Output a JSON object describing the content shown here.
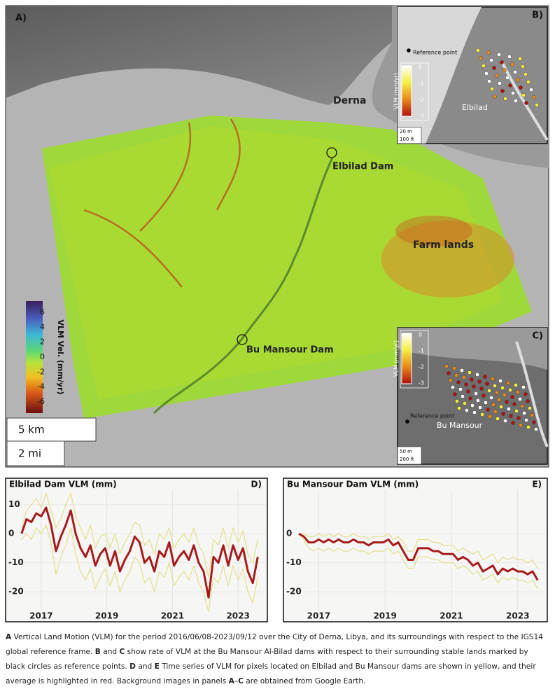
{
  "map": {
    "panel_label": "A)",
    "places": [
      "Derna",
      "Elbilad Dam",
      "Farm lands",
      "Bu Mansour Dam"
    ],
    "colorbar": {
      "title": "VLM Vel. (mm/yr)",
      "ticks": [
        6,
        4,
        2,
        0,
        -2,
        -4,
        -6
      ]
    },
    "scale": [
      "5 km",
      "2 mi"
    ]
  },
  "insets": [
    {
      "label": "B)",
      "reference": "Reference point",
      "site": "Elbilad",
      "colorbar_title": "VLM (mm/yr)",
      "ticks": [
        0,
        -1,
        -2,
        -3
      ],
      "scale": [
        "20 m",
        "100 ft"
      ]
    },
    {
      "label": "C)",
      "reference": "Reference point",
      "site": "Bu Mansour",
      "colorbar_title": "VLM (mm/yr)",
      "ticks": [
        0,
        -1,
        -2,
        -3
      ],
      "scale": [
        "50 m",
        "200 ft"
      ]
    }
  ],
  "chart_data": [
    {
      "type": "line",
      "title": "Elbilad Dam VLM (mm)",
      "label": "D)",
      "x": [
        2016.4,
        2016.55,
        2016.7,
        2016.85,
        2017,
        2017.15,
        2017.3,
        2017.45,
        2017.6,
        2017.75,
        2017.9,
        2018.05,
        2018.2,
        2018.35,
        2018.5,
        2018.65,
        2018.8,
        2018.95,
        2019.1,
        2019.25,
        2019.4,
        2019.55,
        2019.7,
        2019.85,
        2020,
        2020.15,
        2020.3,
        2020.45,
        2020.6,
        2020.75,
        2020.9,
        2021.05,
        2021.2,
        2021.35,
        2021.5,
        2021.65,
        2021.8,
        2021.95,
        2022.1,
        2022.25,
        2022.4,
        2022.55,
        2022.7,
        2022.85,
        2023,
        2023.15,
        2023.3,
        2023.45,
        2023.6
      ],
      "series": [
        {
          "color": "#e3df8c",
          "values": [
            2,
            8,
            10,
            12,
            9,
            14,
            8,
            2,
            5,
            10,
            14,
            6,
            2,
            -2,
            3,
            -5,
            -1,
            0,
            -5,
            0,
            -7,
            -3,
            0,
            4,
            3,
            -4,
            -2,
            -7,
            0,
            -2,
            2,
            -5,
            -2,
            0,
            -3,
            2,
            -4,
            -7,
            -15,
            -2,
            -4,
            2,
            -5,
            2,
            -3,
            1,
            -7,
            -10,
            -2
          ]
        },
        {
          "color": "#e3df8c",
          "values": [
            -2,
            0,
            -2,
            2,
            0,
            3,
            -3,
            -14,
            -8,
            -4,
            2,
            -7,
            -13,
            -16,
            -12,
            -19,
            -15,
            -12,
            -18,
            -13,
            -20,
            -16,
            -13,
            -8,
            -10,
            -17,
            -15,
            -20,
            -13,
            -15,
            -10,
            -18,
            -15,
            -13,
            -16,
            -11,
            -17,
            -20,
            -27,
            -15,
            -17,
            -11,
            -18,
            -11,
            -16,
            -12,
            -20,
            -24,
            -15
          ]
        },
        {
          "color": "#a51c1c",
          "values": [
            0,
            5,
            4,
            7,
            6,
            9,
            3,
            -6,
            -1,
            3,
            8,
            0,
            -5,
            -8,
            -4,
            -11,
            -7,
            -5,
            -11,
            -6,
            -13,
            -9,
            -6,
            -1,
            -3,
            -10,
            -8,
            -13,
            -6,
            -8,
            -3,
            -11,
            -8,
            -6,
            -9,
            -4,
            -10,
            -13,
            -22,
            -8,
            -10,
            -4,
            -11,
            -4,
            -9,
            -5,
            -13,
            -17,
            -8
          ]
        }
      ],
      "xlim": [
        2016.0,
        2023.85
      ],
      "xticks": [
        2017,
        2019,
        2021,
        2023
      ],
      "ylim": [
        -26,
        15
      ],
      "yticks": [
        -20,
        -10,
        0,
        10
      ],
      "grid": true
    },
    {
      "type": "line",
      "title": "Bu Mansour Dam VLM (mm)",
      "label": "E)",
      "x": [
        2016.4,
        2016.55,
        2016.7,
        2016.85,
        2017,
        2017.15,
        2017.3,
        2017.45,
        2017.6,
        2017.75,
        2017.9,
        2018.05,
        2018.2,
        2018.35,
        2018.5,
        2018.65,
        2018.8,
        2018.95,
        2019.1,
        2019.25,
        2019.4,
        2019.55,
        2019.7,
        2019.85,
        2020,
        2020.15,
        2020.3,
        2020.45,
        2020.6,
        2020.75,
        2020.9,
        2021.05,
        2021.2,
        2021.35,
        2021.5,
        2021.65,
        2021.8,
        2021.95,
        2022.1,
        2022.25,
        2022.4,
        2022.55,
        2022.7,
        2022.85,
        2023,
        2023.15,
        2023.3,
        2023.45,
        2023.6
      ],
      "series": [
        {
          "color": "#e3df8c",
          "values": [
            0,
            0,
            -1,
            -1,
            0,
            -1,
            0,
            -1,
            0,
            -1,
            -1,
            0,
            -1,
            -1,
            -2,
            -1,
            -1,
            -1,
            0,
            -2,
            -1,
            -3,
            -6,
            -6,
            -2,
            -2,
            -2,
            -3,
            -3,
            -4,
            -4,
            -4,
            -6,
            -5,
            -6,
            -7,
            -6,
            -9,
            -8,
            -7,
            -10,
            -8,
            -9,
            -8,
            -9,
            -9,
            -10,
            -9,
            -12
          ]
        },
        {
          "color": "#e3df8c",
          "values": [
            0,
            -2,
            -5,
            -6,
            -5,
            -6,
            -5,
            -6,
            -5,
            -6,
            -6,
            -5,
            -6,
            -6,
            -7,
            -6,
            -6,
            -6,
            -5,
            -7,
            -6,
            -9,
            -12,
            -12,
            -8,
            -8,
            -8,
            -9,
            -9,
            -10,
            -10,
            -10,
            -12,
            -11,
            -12,
            -14,
            -13,
            -16,
            -15,
            -14,
            -17,
            -15,
            -16,
            -15,
            -16,
            -16,
            -17,
            -16,
            -19
          ]
        },
        {
          "color": "#a51c1c",
          "values": [
            0,
            -1,
            -3,
            -3,
            -2,
            -3,
            -2,
            -3,
            -2,
            -3,
            -3,
            -2,
            -3,
            -3,
            -4,
            -3,
            -3,
            -3,
            -2,
            -4,
            -3,
            -6,
            -9,
            -9,
            -5,
            -5,
            -5,
            -6,
            -6,
            -7,
            -7,
            -7,
            -9,
            -8,
            -9,
            -11,
            -10,
            -13,
            -12,
            -11,
            -14,
            -12,
            -13,
            -12,
            -13,
            -13,
            -14,
            -13,
            -16
          ]
        }
      ],
      "xlim": [
        2016.0,
        2023.85
      ],
      "xticks": [
        2017,
        2019,
        2021,
        2023
      ],
      "ylim": [
        -26,
        15
      ],
      "yticks": [
        -20,
        -10,
        0
      ],
      "grid": true
    }
  ],
  "caption": [
    "A",
    " Vertical Land Motion (VLM) for the period 2016/06/08-2023/09/12 over the City of Derna, Libya, and its surroundings with respect to the IGS14 global reference frame. ",
    "B",
    " and ",
    "C",
    " show rate of VLM at the Bu Mansour Al-Bilad dams with respect to their surrounding stable lands marked by black circles as reference points. ",
    "D",
    " and ",
    "E",
    " Time series of VLM for pixels located on Elbilad and Bu Mansour dams are shown in yellow, and their average is highlighted in red. Background images in panels ",
    "A",
    "–",
    "C",
    " are obtained from Google Earth."
  ]
}
